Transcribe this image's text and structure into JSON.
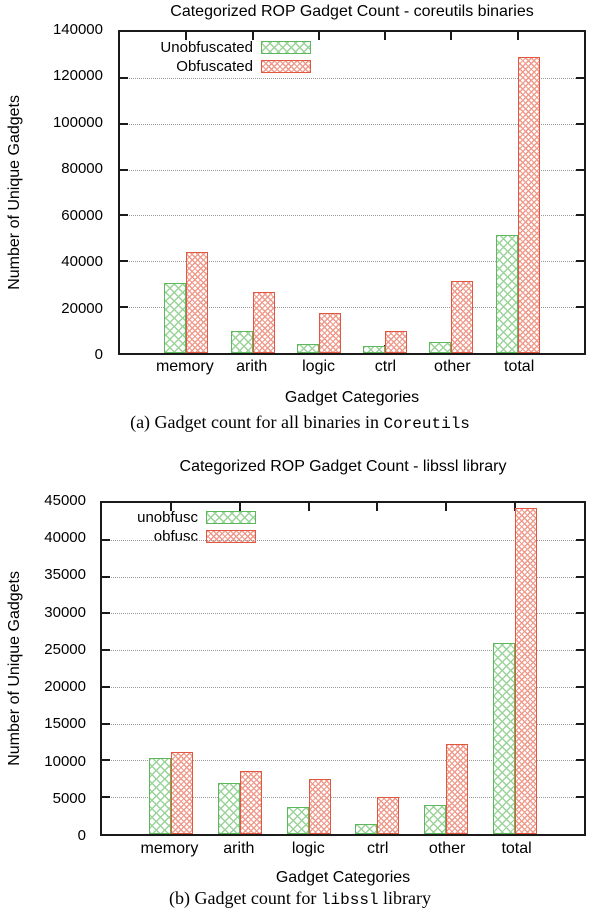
{
  "figure": {
    "background": "#ffffff",
    "frame_color": "#1a1a1a",
    "grid_color": "#9a9a9a",
    "text_color": "#000000"
  },
  "captions": [
    {
      "prefix": "(a) Gadget count for all binaries in ",
      "mono": "Coreutils",
      "suffix": ""
    },
    {
      "prefix": "(b) Gadget count for ",
      "mono": "libssl",
      "suffix": " library"
    }
  ],
  "chart_data": [
    {
      "type": "bar",
      "title": "Categorized ROP Gadget Count - coreutils binaries",
      "xlabel": "Gadget Categories",
      "ylabel": "Number of Unique Gadgets",
      "categories": [
        "memory",
        "arith",
        "logic",
        "ctrl",
        "other",
        "total"
      ],
      "series": [
        {
          "name": "Unobfuscated",
          "border_color": "#5db85c",
          "hatch_color": "#9ad49a",
          "hatch_spacing": 6,
          "values": [
            30500,
            9500,
            4000,
            3000,
            4800,
            51500
          ]
        },
        {
          "name": "Obfuscated",
          "border_color": "#e2573f",
          "hatch_color": "#f09a8c",
          "hatch_spacing": 4,
          "values": [
            44000,
            26700,
            17500,
            9500,
            31500,
            129000
          ]
        }
      ],
      "ylim": [
        0,
        140000
      ],
      "ytick_step": 20000,
      "grid": true,
      "legend_position": "top-left"
    },
    {
      "type": "bar",
      "title": "Categorized ROP Gadget Count - libssl library",
      "xlabel": "Gadget Categories",
      "ylabel": "Number of Unique Gadgets",
      "categories": [
        "memory",
        "arith",
        "logic",
        "ctrl",
        "other",
        "total"
      ],
      "series": [
        {
          "name": "unobfusc",
          "border_color": "#5db85c",
          "hatch_color": "#9ad49a",
          "hatch_spacing": 6,
          "values": [
            10300,
            7000,
            3700,
            1300,
            3900,
            26000
          ]
        },
        {
          "name": "obfusc",
          "border_color": "#e2573f",
          "hatch_color": "#f09a8c",
          "hatch_spacing": 4,
          "values": [
            11200,
            8500,
            7500,
            5000,
            12200,
            44300
          ]
        }
      ],
      "ylim": [
        0,
        45000
      ],
      "ytick_step": 5000,
      "grid": true,
      "legend_position": "top-left"
    }
  ]
}
